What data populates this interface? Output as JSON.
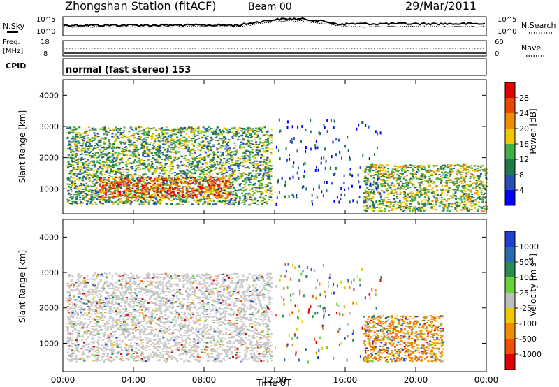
{
  "header": {
    "title": "Zhongshan Station (fitACF)",
    "beam": "Beam 00",
    "date": "29/Mar/2011"
  },
  "top_panels": {
    "nsky_label": "N.Sky",
    "nsearch_label": "N.Search",
    "nsky_ticks": [
      "10^5",
      "10^0"
    ],
    "nsearch_ticks": [
      "10^5",
      "10^0"
    ],
    "freq_label": "Freq.",
    "freq_unit": "[MHz]",
    "freq_ticks": [
      "18",
      "8"
    ],
    "nave_label": "Nave",
    "nave_ticks": [
      "60",
      "0"
    ],
    "cpid_label": "CPID",
    "cpid_text": "normal (fast stereo) 153"
  },
  "colors": {
    "power_scale": [
      "#0000ff",
      "#2550b0",
      "#1f7a48",
      "#40b04a",
      "#f0c800",
      "#f08c00",
      "#e84800",
      "#e00000"
    ],
    "velocity_scale": [
      "#e00000",
      "#f05000",
      "#f08c00",
      "#f0c800",
      "#bebebe",
      "#6ad03a",
      "#2a8c50",
      "#2a6ab0",
      "#2040d0"
    ],
    "ground_scatter": "#c8c8c8"
  },
  "chart_data": [
    {
      "type": "heatmap",
      "name": "power",
      "xlabel": "",
      "ylabel": "Slant Range [km]",
      "x_ticks": [
        "00:00",
        "04:00",
        "08:00",
        "12:00",
        "16:00",
        "20:00",
        "00:00"
      ],
      "x_range_hours": [
        0,
        24
      ],
      "y_ticks": [
        1000,
        2000,
        3000,
        4000
      ],
      "ylim": [
        200,
        4500
      ],
      "colorbar_label": "Power [dB]",
      "colorbar_ticks": [
        4,
        8,
        12,
        16,
        20,
        24,
        28
      ],
      "colorbar_range": [
        0,
        30
      ],
      "echo_regions": [
        {
          "t_start": 0.2,
          "t_end": 11.8,
          "range_start": 500,
          "range_end": 3000,
          "power_db": 12
        },
        {
          "t_start": 2.0,
          "t_end": 9.5,
          "range_start": 700,
          "range_end": 1400,
          "power_db": 24
        },
        {
          "t_start": 17.0,
          "t_end": 24.0,
          "range_start": 300,
          "range_end": 1800,
          "power_db": 14
        }
      ]
    },
    {
      "type": "heatmap",
      "name": "velocity",
      "xlabel": "Time UT",
      "ylabel": "Slant Range [km]",
      "x_ticks": [
        "00:00",
        "04:00",
        "08:00",
        "12:00",
        "16:00",
        "20:00",
        "00:00"
      ],
      "x_range_hours": [
        0,
        24
      ],
      "y_ticks": [
        1000,
        2000,
        3000,
        4000
      ],
      "ylim": [
        200,
        4500
      ],
      "colorbar_label": "Velocity [m s^-1]",
      "colorbar_ticks": [
        "1000",
        "500",
        "100",
        "25",
        "-25",
        "-100",
        "-500",
        "-1000"
      ],
      "echo_regions": [
        {
          "t_start": 0.2,
          "t_end": 11.8,
          "range_start": 500,
          "range_end": 3000,
          "velocity": 0,
          "ground_scatter": true
        },
        {
          "t_start": 17.0,
          "t_end": 21.5,
          "range_start": 500,
          "range_end": 1800,
          "velocity": -250
        }
      ]
    }
  ]
}
